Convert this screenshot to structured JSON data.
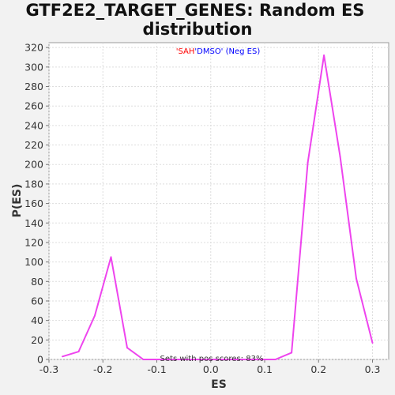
{
  "chart_data": {
    "type": "line",
    "title_lines": [
      "GTF2E2_TARGET_GENES: Random ES",
      "distribution"
    ],
    "xlabel": "ES",
    "ylabel": "P(ES)",
    "xlim": [
      -0.3,
      0.33
    ],
    "ylim": [
      0,
      325
    ],
    "xticks": [
      -0.3,
      -0.2,
      -0.1,
      0.0,
      0.1,
      0.2,
      0.3
    ],
    "xtick_labels": [
      "-0.3",
      "-0.2",
      "-0.1",
      "0.0",
      "0.1",
      "0.2",
      "0.3"
    ],
    "yticks": [
      0,
      20,
      40,
      60,
      80,
      100,
      120,
      140,
      160,
      180,
      200,
      220,
      240,
      260,
      280,
      300,
      320
    ],
    "ytick_labels": [
      "0",
      "20",
      "40",
      "60",
      "80",
      "100",
      "120",
      "140",
      "160",
      "180",
      "200",
      "220",
      "240",
      "260",
      "280",
      "300",
      "320"
    ],
    "grid": true,
    "legend": {
      "position": "top-center",
      "part1": "'SAH",
      "part1_color": "#ff0000",
      "part2": "'DMSO' (Neg ES)",
      "part2_color": "#0000ff"
    },
    "annotation": "Sets with pos scores: 83%",
    "series": [
      {
        "color": "#ee44ee",
        "x": [
          -0.275,
          -0.245,
          -0.215,
          -0.185,
          -0.155,
          -0.125,
          -0.095,
          -0.065,
          -0.035,
          -0.005,
          0.025,
          0.055,
          0.085,
          0.12,
          0.15,
          0.18,
          0.21,
          0.24,
          0.27,
          0.3
        ],
        "y": [
          3,
          8,
          45,
          105,
          12,
          0,
          0,
          0,
          0,
          0,
          0,
          0,
          0,
          0,
          7,
          202,
          312,
          208,
          83,
          17
        ]
      }
    ]
  }
}
